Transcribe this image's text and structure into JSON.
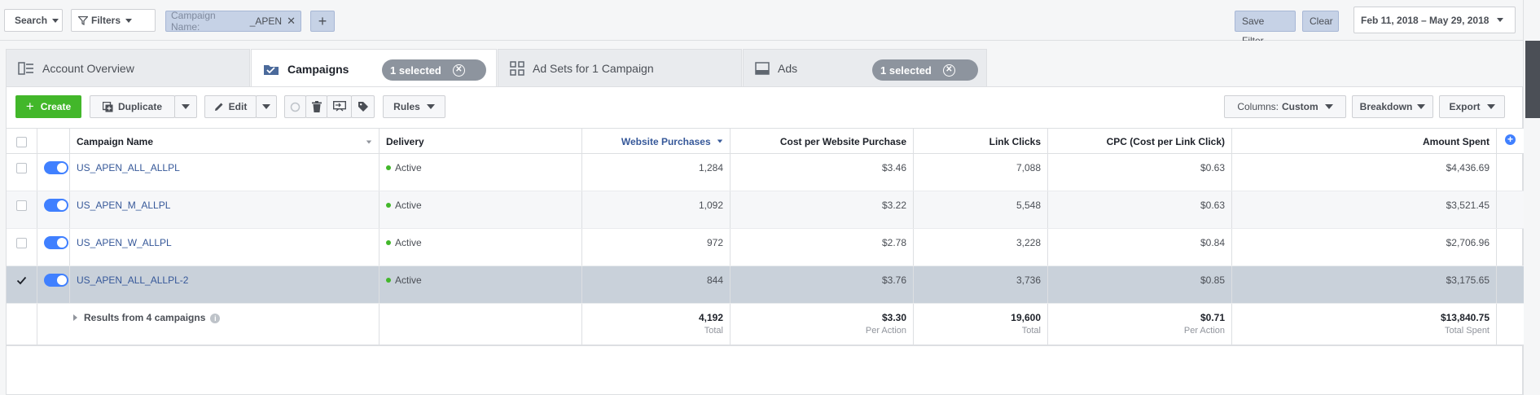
{
  "topbar": {
    "search_label": "Search",
    "filters_label": "Filters",
    "chip_label": "Campaign Name:",
    "chip_value": "_APEN",
    "add_label": "+",
    "save_filter_label": "Save Filter",
    "clear_label": "Clear",
    "date_range": "Feb 11, 2018 – May 29, 2018"
  },
  "tabs": [
    {
      "label": "Account Overview",
      "icon": "account-overview-icon"
    },
    {
      "label": "Campaigns",
      "icon": "campaigns-folder-icon",
      "selected": "1 selected"
    },
    {
      "label": "Ad Sets for 1 Campaign",
      "icon": "ad-sets-grid-icon"
    },
    {
      "label": "Ads",
      "icon": "ads-icon",
      "selected": "1 selected"
    }
  ],
  "toolbar": {
    "create_label": "Create",
    "duplicate_label": "Duplicate",
    "edit_label": "Edit",
    "rules_label": "Rules",
    "columns_prefix": "Columns:",
    "columns_value": "Custom",
    "breakdown_label": "Breakdown",
    "export_label": "Export"
  },
  "table": {
    "headers": {
      "name": "Campaign Name",
      "delivery": "Delivery",
      "purchases": "Website Purchases",
      "cost_per": "Cost per Website Purchase",
      "link_clicks": "Link Clicks",
      "cpc": "CPC (Cost per Link Click)",
      "amount": "Amount Spent"
    },
    "rows": [
      {
        "name": "US_APEN_ALL_ALLPL",
        "delivery": "Active",
        "purchases": "1,284",
        "cost_per": "$3.46",
        "link_clicks": "7,088",
        "cpc": "$0.63",
        "amount": "$4,436.69",
        "checked": false
      },
      {
        "name": "US_APEN_M_ALLPL",
        "delivery": "Active",
        "purchases": "1,092",
        "cost_per": "$3.22",
        "link_clicks": "5,548",
        "cpc": "$0.63",
        "amount": "$3,521.45",
        "checked": false
      },
      {
        "name": "US_APEN_W_ALLPL",
        "delivery": "Active",
        "purchases": "972",
        "cost_per": "$2.78",
        "link_clicks": "3,228",
        "cpc": "$0.84",
        "amount": "$2,706.96",
        "checked": false
      },
      {
        "name": "US_APEN_ALL_ALLPL-2",
        "delivery": "Active",
        "purchases": "844",
        "cost_per": "$3.76",
        "link_clicks": "3,736",
        "cpc": "$0.85",
        "amount": "$3,175.65",
        "checked": true
      }
    ],
    "totals": {
      "label": "Results from 4 campaigns",
      "purchases": "4,192",
      "purchases_sub": "Total",
      "cost_per": "$3.30",
      "cost_per_sub": "Per Action",
      "link_clicks": "19,600",
      "link_clicks_sub": "Total",
      "cpc": "$0.71",
      "cpc_sub": "Per Action",
      "amount": "$13,840.75",
      "amount_sub": "Total Spent"
    }
  },
  "colors": {
    "accent": "#4080ff",
    "create_green": "#42b72a",
    "selected_row": "#c9d1da",
    "link": "#365899"
  }
}
